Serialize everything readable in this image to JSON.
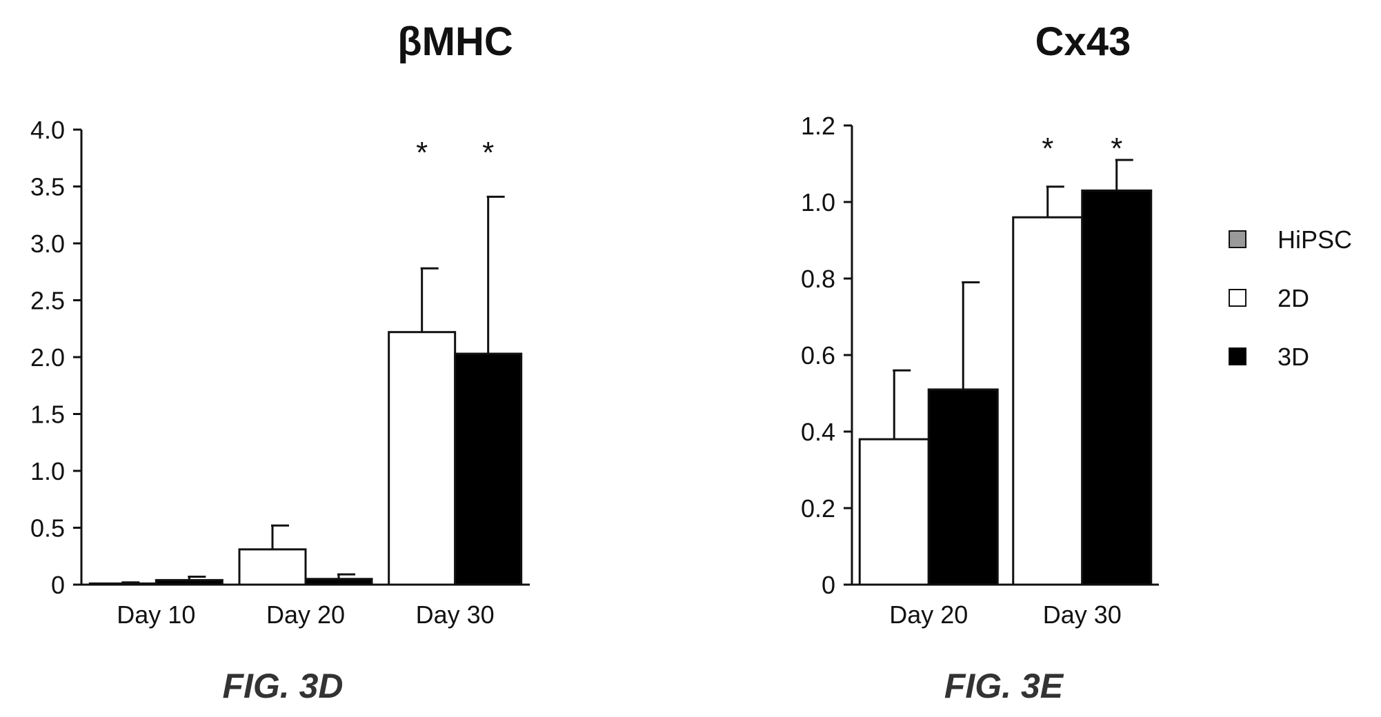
{
  "colors": {
    "hipsc": "#9a9a9a",
    "2d": "#ffffff",
    "3d": "#000000",
    "ink": "#111111"
  },
  "legend": [
    {
      "key": "hipsc",
      "label": "HiPSC"
    },
    {
      "key": "2d",
      "label": "2D"
    },
    {
      "key": "3d",
      "label": "3D"
    }
  ],
  "chart_data": [
    {
      "type": "bar",
      "title": "βMHC",
      "caption": "FIG. 3D",
      "categories": [
        "Day 10",
        "Day 20",
        "Day 30"
      ],
      "ylim": [
        0,
        4.0
      ],
      "yticks": [
        "0",
        "0.5",
        "1.0",
        "1.5",
        "2.0",
        "2.5",
        "3.0",
        "3.5",
        "4.0"
      ],
      "ytick_values": [
        0,
        0.5,
        1.0,
        1.5,
        2.0,
        2.5,
        3.0,
        3.5,
        4.0
      ],
      "series": [
        {
          "key": "2d",
          "values": [
            0.01,
            0.31,
            2.22
          ],
          "errors": [
            0.01,
            0.21,
            0.56
          ]
        },
        {
          "key": "3d",
          "values": [
            0.04,
            0.05,
            2.03
          ],
          "errors": [
            0.03,
            0.04,
            1.38
          ]
        }
      ],
      "annotations": [
        {
          "category": "Day 30",
          "series": "2d",
          "text": "*"
        },
        {
          "category": "Day 30",
          "series": "3d",
          "text": "*"
        }
      ]
    },
    {
      "type": "bar",
      "title": "Cx43",
      "caption": "FIG. 3E",
      "categories": [
        "Day 20",
        "Day 30"
      ],
      "ylim": [
        0,
        1.2
      ],
      "yticks": [
        "0",
        "0.2",
        "0.4",
        "0.6",
        "0.8",
        "1.0",
        "1.2"
      ],
      "ytick_values": [
        0,
        0.2,
        0.4,
        0.6,
        0.8,
        1.0,
        1.2
      ],
      "series": [
        {
          "key": "2d",
          "values": [
            0.38,
            0.96
          ],
          "errors": [
            0.18,
            0.08
          ]
        },
        {
          "key": "3d",
          "values": [
            0.51,
            1.03
          ],
          "errors": [
            0.28,
            0.08
          ]
        }
      ],
      "annotations": [
        {
          "category": "Day 30",
          "series": "2d",
          "text": "*"
        },
        {
          "category": "Day 30",
          "series": "3d",
          "text": "*"
        }
      ]
    }
  ]
}
